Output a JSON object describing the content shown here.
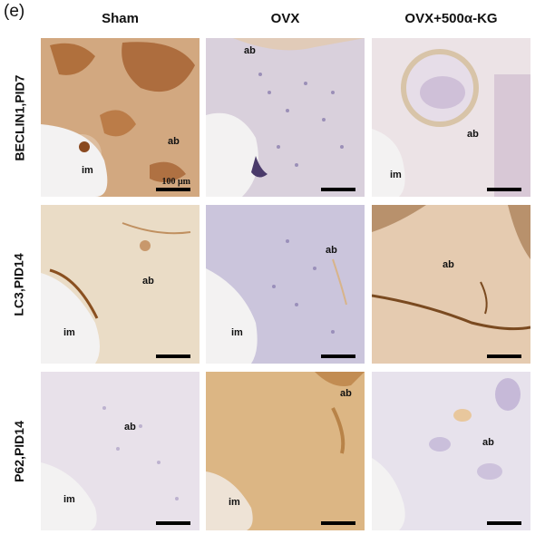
{
  "panel_label": "(e)",
  "columns": [
    "Sham",
    "OVX",
    "OVX+500α-KG"
  ],
  "rows": [
    "BECLIN1,PID7",
    "LC3,PID14",
    "P62,PID14"
  ],
  "region_labels": {
    "ab": "ab",
    "im": "im"
  },
  "scale_bar_label": "100 μm",
  "stain_colors": {
    "sham_beclin": "#d2a880",
    "ovx_beclin": "#d9d0dc",
    "kg_beclin": "#ece3e6",
    "sham_lc3": "#eadcc6",
    "ovx_lc3": "#cbc5dc",
    "kg_lc3": "#e5cbb0",
    "sham_p62": "#e8e1ea",
    "ovx_p62": "#dcb684",
    "kg_p62": "#e7e2ec",
    "marrow_space": "#f3f2f2"
  }
}
